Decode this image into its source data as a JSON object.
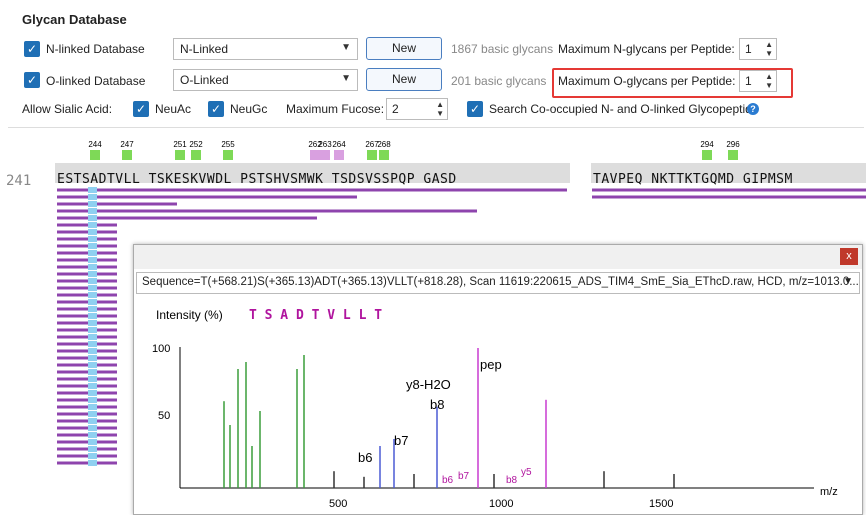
{
  "panel": {
    "title": "Glycan Database",
    "n_linked": {
      "checkbox_label": "N-linked Database",
      "select_value": "N-Linked",
      "button": "New",
      "count": "1867 basic glycans",
      "max_label": "Maximum N-glycans per Peptide:",
      "max_value": "1"
    },
    "o_linked": {
      "checkbox_label": "O-linked Database",
      "select_value": "O-Linked",
      "button": "New",
      "count": "201 basic glycans",
      "max_label": "Maximum O-glycans per Peptide:",
      "max_value": "1"
    },
    "sialic_label": "Allow Sialic Acid:",
    "neuac": "NeuAc",
    "neugc": "NeuGc",
    "fucose_label": "Maximum Fucose:",
    "fucose_value": "2",
    "cooccupied": "Search Co-occupied N- and O-linked Glycopeptide"
  },
  "sequence": {
    "start": "241",
    "text1": "ESTSADTVLL TSKESKVWDL PSTSHVSMWK TSDSVSSPQP GASD",
    "text2": "TAVPEQ NKTTKTGQMD GIPMSM",
    "positions": [
      "244",
      "247",
      "251",
      "252",
      "255",
      "262",
      "263",
      "264",
      "267",
      "268",
      "294",
      "296"
    ]
  },
  "spectrum": {
    "header": "Sequence=T(+568.21)S(+365.13)ADT(+365.13)VLLT(+818.28), Scan 11619:220615_ADS_TIM4_SmE_Sia_EThcD.raw, HCD, m/z=1013.0...",
    "close": "x",
    "ylabel": "Intensity (%)",
    "peptide": "T S A D T V L L T",
    "labels": {
      "y8h2o": "y8-H2O",
      "pep": "pep",
      "b8": "b8",
      "b7": "b7",
      "b6": "b6",
      "y5": "y5",
      "b6p": "b6",
      "b7p": "b7",
      "b8p": "b8"
    },
    "xlabel": "m/z",
    "xticks": [
      "500",
      "1000",
      "1500"
    ],
    "yticks": [
      "100",
      "50"
    ]
  },
  "colors": {
    "accent": "#1f6fb5",
    "highlight": "#e53935",
    "glycan_bar": "#8e44ad",
    "hex": "#7ed957",
    "hexnac": "#1e3fa8"
  }
}
